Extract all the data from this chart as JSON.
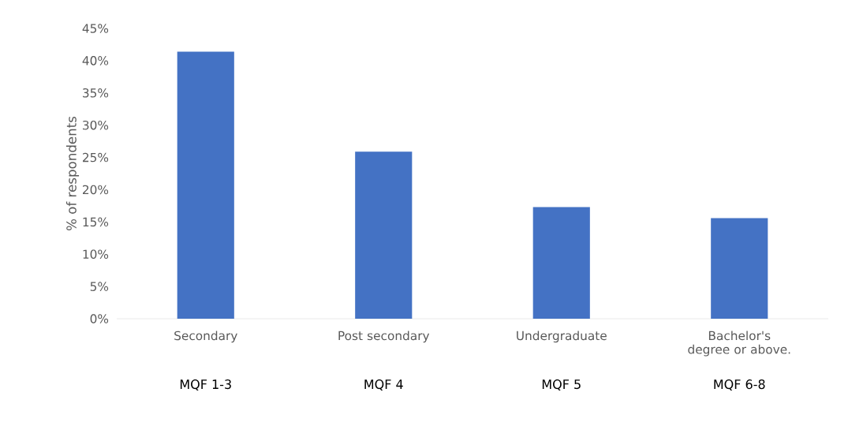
{
  "chart_data": {
    "type": "bar",
    "ylabel": "% of respondents",
    "categories": [
      "Secondary",
      "Post secondary",
      "Undergraduate",
      "Bachelor's degree or above."
    ],
    "values": [
      41.4,
      25.9,
      17.3,
      15.6
    ],
    "color": "#4472c4",
    "ylim": [
      0,
      45
    ],
    "yticks": [
      {
        "value": 0,
        "label": "0%"
      },
      {
        "value": 5,
        "label": "5%"
      },
      {
        "value": 10,
        "label": "10%"
      },
      {
        "value": 15,
        "label": "15%"
      },
      {
        "value": 20,
        "label": "20%"
      },
      {
        "value": 25,
        "label": "25%"
      },
      {
        "value": 30,
        "label": "30%"
      },
      {
        "value": 35,
        "label": "35%"
      },
      {
        "value": 40,
        "label": "40%"
      },
      {
        "value": 45,
        "label": "45%"
      }
    ],
    "annotations": [
      "MQF 1-3",
      "MQF 4",
      "MQF 5",
      "MQF 6-8"
    ],
    "grid": false
  }
}
